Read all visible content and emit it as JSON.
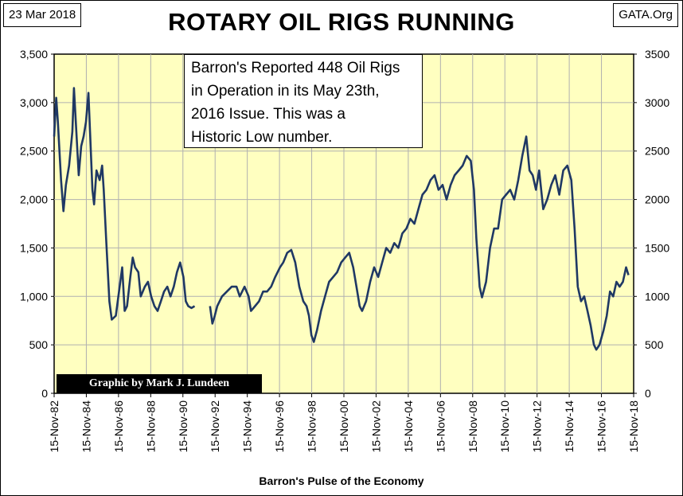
{
  "header": {
    "date": "23 Mar 2018",
    "source": "GATA.Org"
  },
  "annotation": "Barron's Reported 448 Oil Rigs\nin Operation in its May 23th,\n2016 Issue.  This was a\nHistoric Low number.",
  "credit": "Graphic by Mark J. Lundeen",
  "colors": {
    "plot_background": "#FFFFC0",
    "line": "#1F3864",
    "grid": "#B0B0B0"
  },
  "chart_data": {
    "type": "line",
    "title": "ROTARY OIL RIGS  RUNNING",
    "xlabel": "Barron's Pulse of the Economy",
    "ylabel": "",
    "xlim": [
      1982.87,
      2018.87
    ],
    "ylim": [
      0,
      3500
    ],
    "y_ticks_left": [
      "0",
      "500",
      "1,000",
      "1,500",
      "2,000",
      "2,500",
      "3,000",
      "3,500"
    ],
    "y_ticks_right": [
      "0",
      "500",
      "1000",
      "1500",
      "2000",
      "2500",
      "3000",
      "3500"
    ],
    "x_ticks": [
      "15-Nov-82",
      "15-Nov-84",
      "15-Nov-86",
      "15-Nov-88",
      "15-Nov-90",
      "15-Nov-92",
      "15-Nov-94",
      "15-Nov-96",
      "15-Nov-98",
      "15-Nov-00",
      "15-Nov-02",
      "15-Nov-04",
      "15-Nov-06",
      "15-Nov-08",
      "15-Nov-10",
      "15-Nov-12",
      "15-Nov-14",
      "15-Nov-16",
      "15-Nov-18"
    ],
    "grid": true,
    "series": [
      {
        "segments": [
          [
            [
              1982.87,
              2650
            ],
            [
              1983.0,
              3050
            ],
            [
              1983.1,
              2800
            ],
            [
              1983.3,
              2200
            ],
            [
              1983.45,
              1880
            ],
            [
              1983.6,
              2150
            ],
            [
              1983.8,
              2350
            ],
            [
              1984.0,
              2700
            ],
            [
              1984.1,
              3150
            ],
            [
              1984.25,
              2700
            ],
            [
              1984.4,
              2250
            ],
            [
              1984.55,
              2550
            ],
            [
              1984.7,
              2650
            ],
            [
              1984.85,
              2800
            ],
            [
              1985.0,
              3100
            ],
            [
              1985.1,
              2700
            ],
            [
              1985.25,
              2100
            ],
            [
              1985.35,
              1950
            ],
            [
              1985.5,
              2300
            ],
            [
              1985.7,
              2200
            ],
            [
              1985.85,
              2350
            ],
            [
              1985.95,
              2100
            ],
            [
              1986.1,
              1600
            ],
            [
              1986.3,
              950
            ],
            [
              1986.45,
              760
            ],
            [
              1986.7,
              800
            ],
            [
              1986.9,
              1050
            ],
            [
              1987.1,
              1300
            ],
            [
              1987.25,
              850
            ],
            [
              1987.4,
              900
            ],
            [
              1987.6,
              1200
            ],
            [
              1987.75,
              1400
            ],
            [
              1987.9,
              1300
            ],
            [
              1988.1,
              1250
            ],
            [
              1988.25,
              1000
            ],
            [
              1988.5,
              1100
            ],
            [
              1988.7,
              1150
            ],
            [
              1988.9,
              1000
            ],
            [
              1989.1,
              900
            ],
            [
              1989.3,
              850
            ],
            [
              1989.5,
              950
            ],
            [
              1989.7,
              1050
            ],
            [
              1989.9,
              1100
            ],
            [
              1990.1,
              1000
            ],
            [
              1990.3,
              1100
            ],
            [
              1990.5,
              1250
            ],
            [
              1990.7,
              1350
            ],
            [
              1990.9,
              1200
            ],
            [
              1991.05,
              950
            ],
            [
              1991.2,
              900
            ],
            [
              1991.4,
              880
            ],
            [
              1991.6,
              900
            ]
          ],
          [
            [
              1992.55,
              900
            ],
            [
              1992.7,
              720
            ],
            [
              1992.85,
              800
            ],
            [
              1993.0,
              900
            ],
            [
              1993.3,
              1000
            ],
            [
              1993.6,
              1050
            ],
            [
              1993.9,
              1100
            ],
            [
              1994.2,
              1100
            ],
            [
              1994.4,
              1000
            ],
            [
              1994.7,
              1100
            ],
            [
              1994.95,
              1000
            ],
            [
              1995.1,
              850
            ],
            [
              1995.35,
              900
            ],
            [
              1995.6,
              950
            ],
            [
              1995.85,
              1050
            ],
            [
              1996.1,
              1050
            ],
            [
              1996.35,
              1100
            ],
            [
              1996.6,
              1200
            ],
            [
              1996.9,
              1300
            ],
            [
              1997.1,
              1350
            ],
            [
              1997.35,
              1450
            ],
            [
              1997.6,
              1480
            ],
            [
              1997.85,
              1350
            ],
            [
              1998.1,
              1100
            ],
            [
              1998.35,
              950
            ],
            [
              1998.55,
              900
            ],
            [
              1998.7,
              800
            ],
            [
              1998.85,
              600
            ],
            [
              1999.0,
              530
            ],
            [
              1999.2,
              650
            ],
            [
              1999.45,
              850
            ],
            [
              1999.7,
              1000
            ],
            [
              1999.95,
              1150
            ],
            [
              2000.2,
              1200
            ],
            [
              2000.45,
              1250
            ],
            [
              2000.7,
              1350
            ],
            [
              2000.95,
              1400
            ],
            [
              2001.2,
              1450
            ],
            [
              2001.45,
              1300
            ],
            [
              2001.65,
              1100
            ],
            [
              2001.85,
              900
            ],
            [
              2002.0,
              850
            ],
            [
              2002.25,
              950
            ],
            [
              2002.5,
              1150
            ],
            [
              2002.75,
              1300
            ],
            [
              2003.0,
              1200
            ],
            [
              2003.25,
              1350
            ],
            [
              2003.5,
              1500
            ],
            [
              2003.75,
              1450
            ],
            [
              2004.0,
              1550
            ],
            [
              2004.25,
              1500
            ],
            [
              2004.5,
              1650
            ],
            [
              2004.75,
              1700
            ],
            [
              2005.0,
              1800
            ],
            [
              2005.25,
              1750
            ],
            [
              2005.5,
              1900
            ],
            [
              2005.75,
              2050
            ],
            [
              2006.0,
              2100
            ],
            [
              2006.25,
              2200
            ],
            [
              2006.5,
              2250
            ],
            [
              2006.75,
              2100
            ],
            [
              2007.0,
              2150
            ],
            [
              2007.25,
              2000
            ],
            [
              2007.5,
              2150
            ],
            [
              2007.75,
              2250
            ],
            [
              2008.0,
              2300
            ],
            [
              2008.25,
              2350
            ],
            [
              2008.5,
              2450
            ],
            [
              2008.75,
              2400
            ],
            [
              2008.95,
              2100
            ],
            [
              2009.1,
              1600
            ],
            [
              2009.3,
              1100
            ],
            [
              2009.45,
              990
            ],
            [
              2009.7,
              1150
            ],
            [
              2009.95,
              1500
            ],
            [
              2010.2,
              1700
            ],
            [
              2010.45,
              1700
            ],
            [
              2010.7,
              2000
            ],
            [
              2010.95,
              2050
            ],
            [
              2011.2,
              2100
            ],
            [
              2011.45,
              2000
            ],
            [
              2011.7,
              2200
            ],
            [
              2011.95,
              2450
            ],
            [
              2012.2,
              2650
            ],
            [
              2012.4,
              2300
            ],
            [
              2012.6,
              2250
            ],
            [
              2012.8,
              2100
            ],
            [
              2013.0,
              2300
            ],
            [
              2013.25,
              1900
            ],
            [
              2013.5,
              2000
            ],
            [
              2013.75,
              2150
            ],
            [
              2014.0,
              2250
            ],
            [
              2014.25,
              2050
            ],
            [
              2014.5,
              2300
            ],
            [
              2014.75,
              2350
            ],
            [
              2015.0,
              2200
            ],
            [
              2015.2,
              1700
            ],
            [
              2015.4,
              1100
            ],
            [
              2015.6,
              950
            ],
            [
              2015.8,
              1000
            ],
            [
              2016.0,
              850
            ],
            [
              2016.2,
              700
            ],
            [
              2016.4,
              500
            ],
            [
              2016.55,
              450
            ],
            [
              2016.75,
              500
            ],
            [
              2017.0,
              650
            ],
            [
              2017.2,
              800
            ],
            [
              2017.4,
              1050
            ],
            [
              2017.6,
              1000
            ],
            [
              2017.8,
              1150
            ],
            [
              2018.0,
              1100
            ],
            [
              2018.2,
              1150
            ],
            [
              2018.4,
              1300
            ],
            [
              2018.55,
              1220
            ]
          ]
        ]
      }
    ]
  }
}
